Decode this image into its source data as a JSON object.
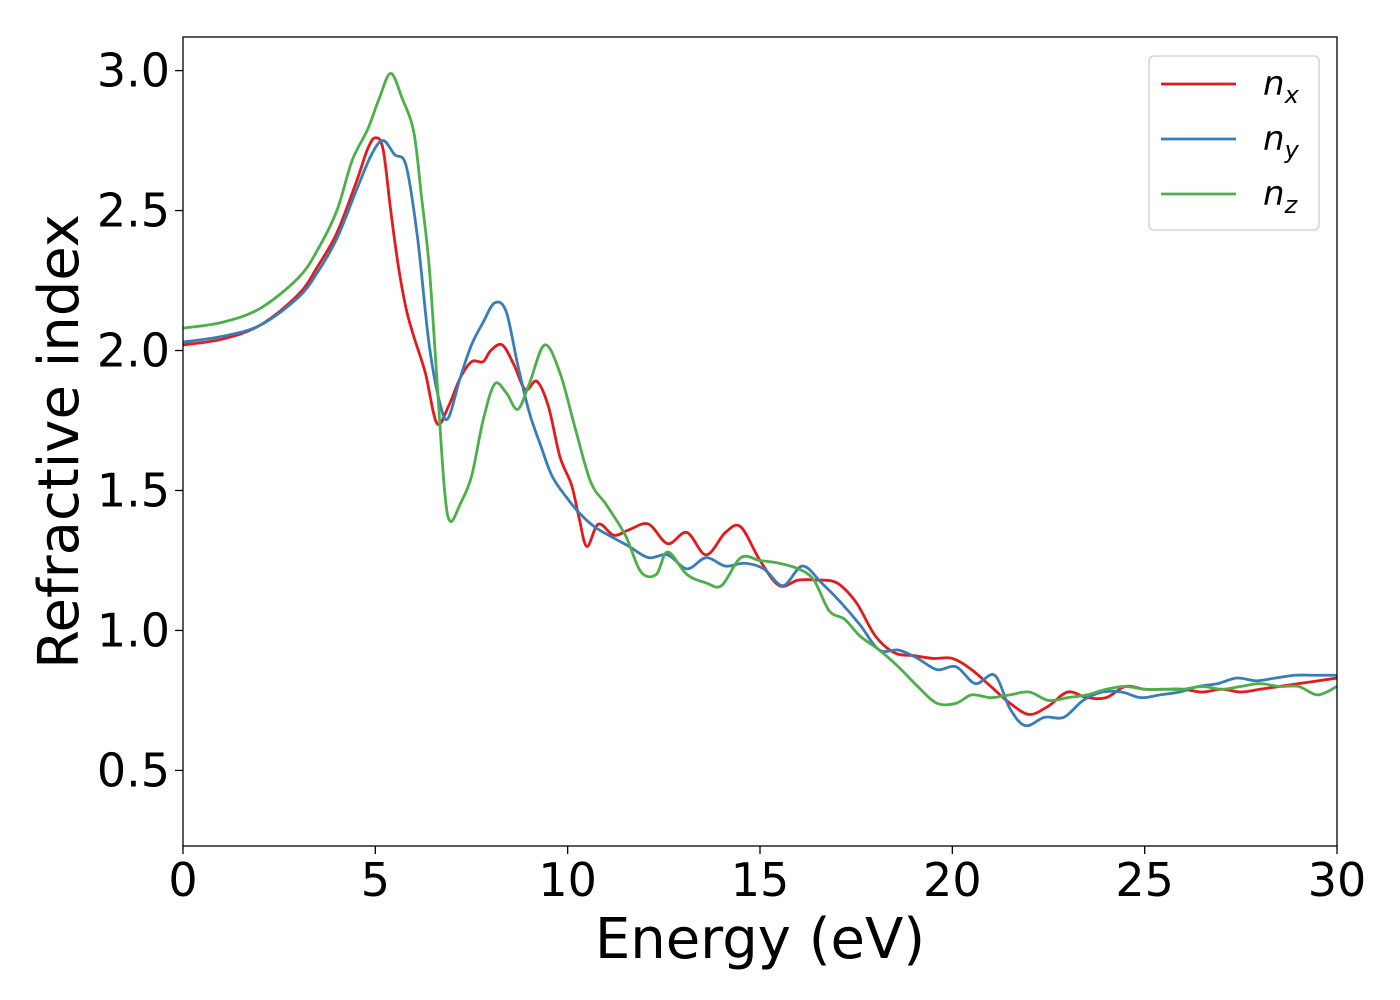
{
  "chart_data": {
    "type": "line",
    "title": "",
    "xlabel": "Energy (eV)",
    "ylabel": "Refractive index",
    "xlim": [
      0,
      30
    ],
    "ylim": [
      0.23,
      3.12
    ],
    "grid": false,
    "legend_position": "top-right",
    "x_ticks": [
      0,
      5,
      10,
      15,
      20,
      25,
      30
    ],
    "y_ticks": [
      0.5,
      1.0,
      1.5,
      2.0,
      2.5,
      3.0
    ],
    "series": [
      {
        "name": "n_x",
        "legend_base": "n",
        "legend_sub": "x",
        "color": "#e41a1c",
        "points": [
          [
            0,
            2.02
          ],
          [
            1,
            2.04
          ],
          [
            2,
            2.09
          ],
          [
            3,
            2.2
          ],
          [
            3.5,
            2.3
          ],
          [
            4,
            2.42
          ],
          [
            4.5,
            2.6
          ],
          [
            4.8,
            2.72
          ],
          [
            5.0,
            2.76
          ],
          [
            5.2,
            2.72
          ],
          [
            5.4,
            2.5
          ],
          [
            5.6,
            2.3
          ],
          [
            5.8,
            2.15
          ],
          [
            6.0,
            2.05
          ],
          [
            6.3,
            1.92
          ],
          [
            6.6,
            1.74
          ],
          [
            6.9,
            1.8
          ],
          [
            7.2,
            1.9
          ],
          [
            7.5,
            1.96
          ],
          [
            7.8,
            1.96
          ],
          [
            8.0,
            2.0
          ],
          [
            8.3,
            2.02
          ],
          [
            8.6,
            1.95
          ],
          [
            8.9,
            1.86
          ],
          [
            9.2,
            1.89
          ],
          [
            9.5,
            1.8
          ],
          [
            9.8,
            1.62
          ],
          [
            10.1,
            1.52
          ],
          [
            10.3,
            1.4
          ],
          [
            10.5,
            1.3
          ],
          [
            10.8,
            1.38
          ],
          [
            11.2,
            1.34
          ],
          [
            11.6,
            1.36
          ],
          [
            12.1,
            1.38
          ],
          [
            12.6,
            1.31
          ],
          [
            13.1,
            1.35
          ],
          [
            13.6,
            1.27
          ],
          [
            14.1,
            1.35
          ],
          [
            14.5,
            1.37
          ],
          [
            15.0,
            1.25
          ],
          [
            15.5,
            1.16
          ],
          [
            16.0,
            1.18
          ],
          [
            16.5,
            1.18
          ],
          [
            17.0,
            1.17
          ],
          [
            17.5,
            1.1
          ],
          [
            18.0,
            0.98
          ],
          [
            18.5,
            0.92
          ],
          [
            19.0,
            0.91
          ],
          [
            19.5,
            0.9
          ],
          [
            20.0,
            0.9
          ],
          [
            20.5,
            0.86
          ],
          [
            21.0,
            0.8
          ],
          [
            21.5,
            0.74
          ],
          [
            22.0,
            0.7
          ],
          [
            22.5,
            0.73
          ],
          [
            23.0,
            0.78
          ],
          [
            23.5,
            0.76
          ],
          [
            24.0,
            0.76
          ],
          [
            24.5,
            0.8
          ],
          [
            25.0,
            0.79
          ],
          [
            25.5,
            0.79
          ],
          [
            26.0,
            0.79
          ],
          [
            26.5,
            0.78
          ],
          [
            27.0,
            0.79
          ],
          [
            27.5,
            0.78
          ],
          [
            28.0,
            0.79
          ],
          [
            28.5,
            0.8
          ],
          [
            29.0,
            0.81
          ],
          [
            29.5,
            0.82
          ],
          [
            30.0,
            0.83
          ]
        ]
      },
      {
        "name": "n_y",
        "legend_base": "n",
        "legend_sub": "y",
        "color": "#377eb8",
        "points": [
          [
            0,
            2.03
          ],
          [
            1,
            2.05
          ],
          [
            2,
            2.09
          ],
          [
            3,
            2.19
          ],
          [
            3.5,
            2.28
          ],
          [
            4,
            2.4
          ],
          [
            4.5,
            2.57
          ],
          [
            4.9,
            2.7
          ],
          [
            5.2,
            2.75
          ],
          [
            5.5,
            2.7
          ],
          [
            5.8,
            2.66
          ],
          [
            6.1,
            2.4
          ],
          [
            6.4,
            2.02
          ],
          [
            6.7,
            1.8
          ],
          [
            6.9,
            1.76
          ],
          [
            7.2,
            1.9
          ],
          [
            7.5,
            2.02
          ],
          [
            7.8,
            2.1
          ],
          [
            8.1,
            2.17
          ],
          [
            8.4,
            2.14
          ],
          [
            8.7,
            1.95
          ],
          [
            9.0,
            1.78
          ],
          [
            9.3,
            1.66
          ],
          [
            9.6,
            1.55
          ],
          [
            10.0,
            1.47
          ],
          [
            10.3,
            1.42
          ],
          [
            10.7,
            1.37
          ],
          [
            11.2,
            1.33
          ],
          [
            11.6,
            1.3
          ],
          [
            12.1,
            1.26
          ],
          [
            12.6,
            1.27
          ],
          [
            13.1,
            1.22
          ],
          [
            13.6,
            1.26
          ],
          [
            14.1,
            1.23
          ],
          [
            14.6,
            1.24
          ],
          [
            15.1,
            1.22
          ],
          [
            15.6,
            1.16
          ],
          [
            16.1,
            1.23
          ],
          [
            16.6,
            1.17
          ],
          [
            17.1,
            1.1
          ],
          [
            17.6,
            1.02
          ],
          [
            18.1,
            0.93
          ],
          [
            18.6,
            0.93
          ],
          [
            19.1,
            0.9
          ],
          [
            19.6,
            0.86
          ],
          [
            20.1,
            0.87
          ],
          [
            20.6,
            0.81
          ],
          [
            21.1,
            0.84
          ],
          [
            21.5,
            0.72
          ],
          [
            21.9,
            0.66
          ],
          [
            22.4,
            0.69
          ],
          [
            22.9,
            0.69
          ],
          [
            23.4,
            0.75
          ],
          [
            23.9,
            0.78
          ],
          [
            24.4,
            0.78
          ],
          [
            24.9,
            0.76
          ],
          [
            25.4,
            0.77
          ],
          [
            25.9,
            0.78
          ],
          [
            26.4,
            0.8
          ],
          [
            26.9,
            0.81
          ],
          [
            27.4,
            0.83
          ],
          [
            27.9,
            0.82
          ],
          [
            28.4,
            0.83
          ],
          [
            28.9,
            0.84
          ],
          [
            29.4,
            0.84
          ],
          [
            30.0,
            0.84
          ]
        ]
      },
      {
        "name": "n_z",
        "legend_base": "n",
        "legend_sub": "z",
        "color": "#4daf4a",
        "points": [
          [
            0,
            2.08
          ],
          [
            1,
            2.1
          ],
          [
            2,
            2.15
          ],
          [
            3,
            2.26
          ],
          [
            3.5,
            2.36
          ],
          [
            4,
            2.5
          ],
          [
            4.4,
            2.68
          ],
          [
            4.8,
            2.79
          ],
          [
            5.1,
            2.9
          ],
          [
            5.4,
            2.99
          ],
          [
            5.7,
            2.9
          ],
          [
            6.0,
            2.78
          ],
          [
            6.2,
            2.55
          ],
          [
            6.4,
            2.3
          ],
          [
            6.6,
            1.9
          ],
          [
            6.8,
            1.5
          ],
          [
            6.95,
            1.39
          ],
          [
            7.2,
            1.45
          ],
          [
            7.5,
            1.55
          ],
          [
            7.8,
            1.75
          ],
          [
            8.1,
            1.88
          ],
          [
            8.4,
            1.85
          ],
          [
            8.7,
            1.79
          ],
          [
            9.0,
            1.88
          ],
          [
            9.4,
            2.02
          ],
          [
            9.8,
            1.92
          ],
          [
            10.2,
            1.72
          ],
          [
            10.6,
            1.53
          ],
          [
            11.0,
            1.45
          ],
          [
            11.5,
            1.34
          ],
          [
            11.9,
            1.21
          ],
          [
            12.3,
            1.2
          ],
          [
            12.6,
            1.28
          ],
          [
            13.1,
            1.2
          ],
          [
            13.6,
            1.17
          ],
          [
            14.0,
            1.16
          ],
          [
            14.5,
            1.26
          ],
          [
            15.0,
            1.25
          ],
          [
            15.5,
            1.24
          ],
          [
            16.0,
            1.22
          ],
          [
            16.4,
            1.18
          ],
          [
            16.8,
            1.07
          ],
          [
            17.2,
            1.04
          ],
          [
            17.6,
            0.98
          ],
          [
            18.1,
            0.93
          ],
          [
            18.6,
            0.87
          ],
          [
            19.1,
            0.8
          ],
          [
            19.6,
            0.74
          ],
          [
            20.1,
            0.74
          ],
          [
            20.5,
            0.77
          ],
          [
            21.0,
            0.76
          ],
          [
            21.5,
            0.77
          ],
          [
            22.0,
            0.78
          ],
          [
            22.5,
            0.75
          ],
          [
            23.0,
            0.76
          ],
          [
            23.5,
            0.77
          ],
          [
            24.0,
            0.79
          ],
          [
            24.5,
            0.8
          ],
          [
            25.0,
            0.79
          ],
          [
            25.5,
            0.79
          ],
          [
            26.0,
            0.79
          ],
          [
            26.5,
            0.8
          ],
          [
            27.0,
            0.79
          ],
          [
            27.5,
            0.8
          ],
          [
            28.0,
            0.81
          ],
          [
            28.5,
            0.8
          ],
          [
            29.0,
            0.8
          ],
          [
            29.5,
            0.77
          ],
          [
            30.0,
            0.8
          ]
        ]
      }
    ]
  }
}
